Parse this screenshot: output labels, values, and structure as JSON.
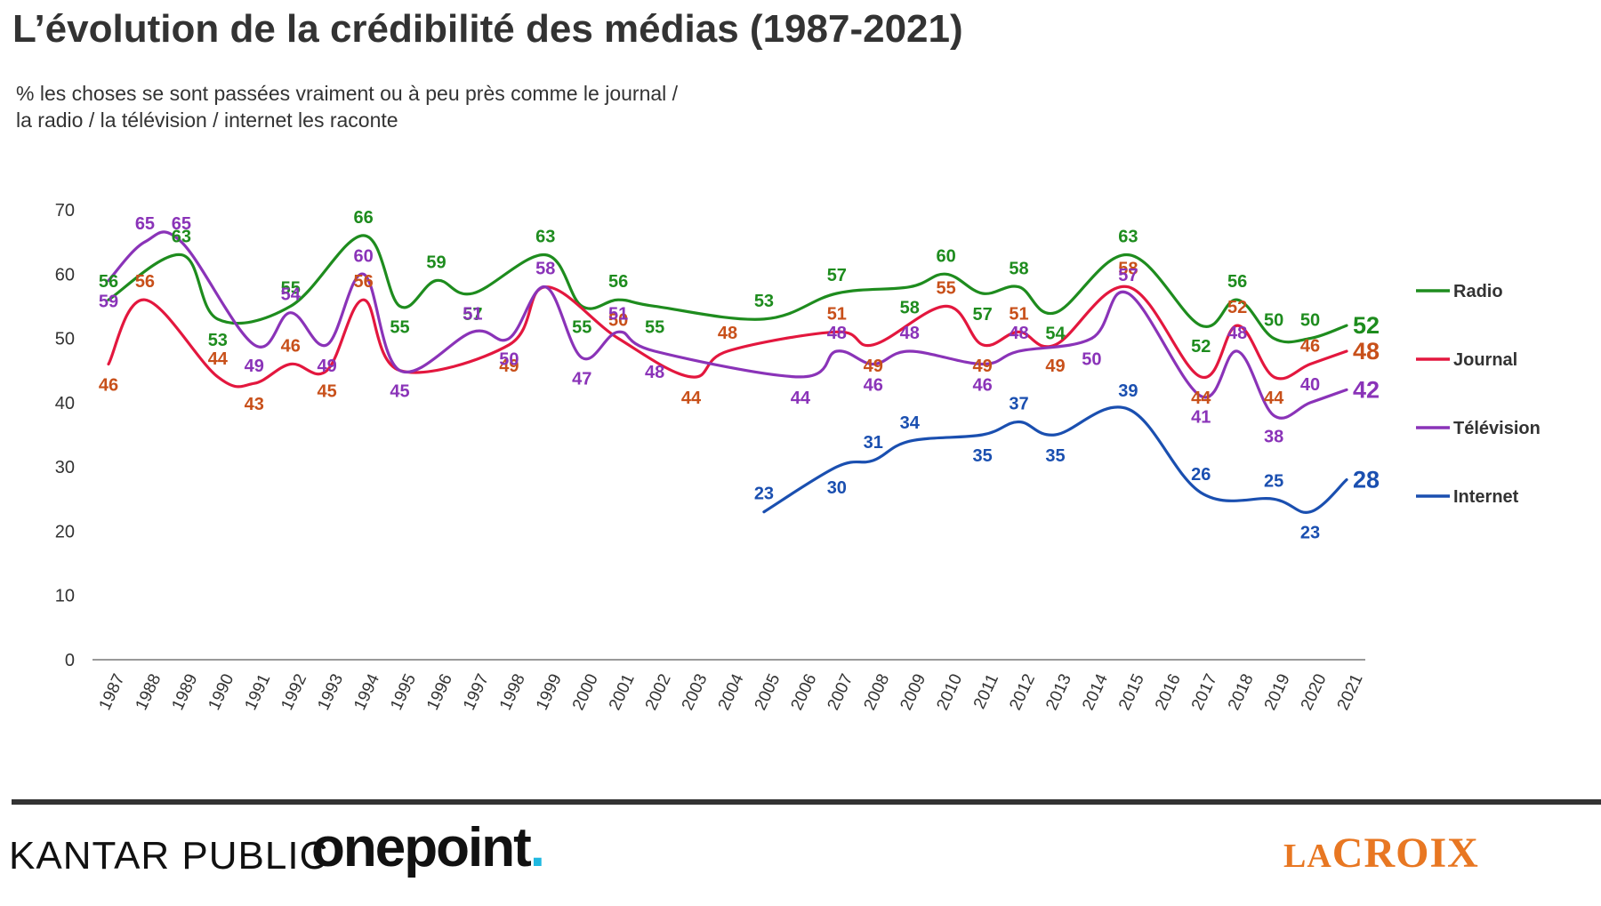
{
  "title": "L’évolution de la crédibilité des médias (1987-2021)",
  "subtitle": {
    "line1": "% les choses se sont passées vraiment ou à peu près comme le journal /",
    "line2": "la radio / la télévision / internet les raconte"
  },
  "footer": {
    "brand_left": "KANTAR PUBLIC",
    "brand_middle": "onepoint",
    "brand_middle_dot": ".",
    "brand_right_a": "LA",
    "brand_right_b": "CROIX"
  },
  "chart_data": {
    "type": "line",
    "ylim": [
      0,
      70
    ],
    "yticks": [
      0,
      10,
      20,
      30,
      40,
      50,
      60,
      70
    ],
    "grid": false,
    "legend_position": "right",
    "categories": [
      "1987",
      "1988",
      "1989",
      "1990",
      "1991",
      "1992",
      "1993",
      "1994",
      "1995",
      "1996",
      "1997",
      "1998",
      "1999",
      "2000",
      "2001",
      "2002",
      "2003",
      "2004",
      "2005",
      "2006",
      "2007",
      "2008",
      "2009",
      "2010",
      "2011",
      "2012",
      "2013",
      "2014",
      "2015",
      "2016",
      "2017",
      "2018",
      "2019",
      "2020",
      "2021"
    ],
    "series": [
      {
        "name": "Radio",
        "color": "#1e8c1e",
        "points": [
          [
            "1987",
            56
          ],
          [
            "1989",
            63
          ],
          [
            "1990",
            53
          ],
          [
            "1992",
            55
          ],
          [
            "1994",
            66
          ],
          [
            "1995",
            55
          ],
          [
            "1996",
            59
          ],
          [
            "1997",
            57
          ],
          [
            "1999",
            63
          ],
          [
            "2000",
            55
          ],
          [
            "2001",
            56
          ],
          [
            "2002",
            55
          ],
          [
            "2005",
            53
          ],
          [
            "2007",
            57
          ],
          [
            "2009",
            58
          ],
          [
            "2010",
            60
          ],
          [
            "2011",
            57
          ],
          [
            "2012",
            58
          ],
          [
            "2013",
            54
          ],
          [
            "2015",
            63
          ],
          [
            "2017",
            52
          ],
          [
            "2018",
            56
          ],
          [
            "2019",
            50
          ],
          [
            "2020",
            50
          ],
          [
            "2021",
            52
          ]
        ],
        "last_value": "52"
      },
      {
        "name": "Journal",
        "color": "#e3173e",
        "points": [
          [
            "1987",
            46
          ],
          [
            "1988",
            56
          ],
          [
            "1990",
            44
          ],
          [
            "1991",
            43
          ],
          [
            "1992",
            46
          ],
          [
            "1993",
            45
          ],
          [
            "1994",
            56
          ],
          [
            "1995",
            45
          ],
          [
            "1998",
            49
          ],
          [
            "1999",
            58
          ],
          [
            "2001",
            50
          ],
          [
            "2003",
            44
          ],
          [
            "2004",
            48
          ],
          [
            "2007",
            51
          ],
          [
            "2008",
            49
          ],
          [
            "2010",
            55
          ],
          [
            "2011",
            49
          ],
          [
            "2012",
            51
          ],
          [
            "2013",
            49
          ],
          [
            "2015",
            58
          ],
          [
            "2017",
            44
          ],
          [
            "2018",
            52
          ],
          [
            "2019",
            44
          ],
          [
            "2020",
            46
          ],
          [
            "2021",
            48
          ]
        ],
        "last_value": "48"
      },
      {
        "name": "Télévision",
        "color": "#8a33b8",
        "points": [
          [
            "1987",
            59
          ],
          [
            "1988",
            65
          ],
          [
            "1989",
            65
          ],
          [
            "1991",
            49
          ],
          [
            "1992",
            54
          ],
          [
            "1993",
            49
          ],
          [
            "1994",
            60
          ],
          [
            "1995",
            45
          ],
          [
            "1997",
            51
          ],
          [
            "1998",
            50
          ],
          [
            "1999",
            58
          ],
          [
            "2000",
            47
          ],
          [
            "2001",
            51
          ],
          [
            "2002",
            48
          ],
          [
            "2006",
            44
          ],
          [
            "2007",
            48
          ],
          [
            "2008",
            46
          ],
          [
            "2009",
            48
          ],
          [
            "2011",
            46
          ],
          [
            "2012",
            48
          ],
          [
            "2014",
            50
          ],
          [
            "2015",
            57
          ],
          [
            "2017",
            41
          ],
          [
            "2018",
            48
          ],
          [
            "2019",
            38
          ],
          [
            "2020",
            40
          ],
          [
            "2021",
            42
          ]
        ],
        "last_value": "42"
      },
      {
        "name": "Internet",
        "color": "#1a4fb0",
        "points": [
          [
            "2005",
            23
          ],
          [
            "2007",
            30
          ],
          [
            "2008",
            31
          ],
          [
            "2009",
            34
          ],
          [
            "2011",
            35
          ],
          [
            "2012",
            37
          ],
          [
            "2013",
            35
          ],
          [
            "2015",
            39
          ],
          [
            "2017",
            26
          ],
          [
            "2019",
            25
          ],
          [
            "2020",
            23
          ],
          [
            "2021",
            28
          ]
        ],
        "last_value": "28"
      }
    ],
    "point_labels": {
      "Radio": [
        [
          "1987",
          "56"
        ],
        [
          "1989",
          "63"
        ],
        [
          "1990",
          "53"
        ],
        [
          "1992",
          "55"
        ],
        [
          "1994",
          "66"
        ],
        [
          "1995",
          "55"
        ],
        [
          "1996",
          "59"
        ],
        [
          "1997",
          "57"
        ],
        [
          "1999",
          "63"
        ],
        [
          "2000",
          "55"
        ],
        [
          "2001",
          "56"
        ],
        [
          "2002",
          "55"
        ],
        [
          "2005",
          "53"
        ],
        [
          "2007",
          "57"
        ],
        [
          "2009",
          "58"
        ],
        [
          "2010",
          "60"
        ],
        [
          "2011",
          "57"
        ],
        [
          "2012",
          "58"
        ],
        [
          "2013",
          "54"
        ],
        [
          "2015",
          "63"
        ],
        [
          "2017",
          "52"
        ],
        [
          "2018",
          "56"
        ],
        [
          "2019",
          "50"
        ],
        [
          "2020",
          "50"
        ]
      ],
      "Journal": [
        [
          "1987",
          "46"
        ],
        [
          "1988",
          "56"
        ],
        [
          "1990",
          "44"
        ],
        [
          "1991",
          "43"
        ],
        [
          "1992",
          "46"
        ],
        [
          "1993",
          "45"
        ],
        [
          "1994",
          "56"
        ],
        [
          "1998",
          "49"
        ],
        [
          "2001",
          "50"
        ],
        [
          "2003",
          "44"
        ],
        [
          "2004",
          "48"
        ],
        [
          "2007",
          "51"
        ],
        [
          "2008",
          "49"
        ],
        [
          "2010",
          "55"
        ],
        [
          "2011",
          "49"
        ],
        [
          "2012",
          "51"
        ],
        [
          "2013",
          "49"
        ],
        [
          "2015",
          "58"
        ],
        [
          "2017",
          "44"
        ],
        [
          "2018",
          "52"
        ],
        [
          "2019",
          "44"
        ],
        [
          "2020",
          "46"
        ]
      ],
      "Télévision": [
        [
          "1987",
          "59"
        ],
        [
          "1988",
          "65"
        ],
        [
          "1989",
          "65"
        ],
        [
          "1991",
          "49"
        ],
        [
          "1992",
          "54"
        ],
        [
          "1993",
          "49"
        ],
        [
          "1994",
          "60"
        ],
        [
          "1995",
          "45"
        ],
        [
          "1997",
          "51"
        ],
        [
          "1998",
          "50"
        ],
        [
          "1999",
          "58"
        ],
        [
          "2000",
          "47"
        ],
        [
          "2001",
          "51"
        ],
        [
          "2002",
          "48"
        ],
        [
          "2006",
          "44"
        ],
        [
          "2007",
          "48"
        ],
        [
          "2008",
          "46"
        ],
        [
          "2009",
          "48"
        ],
        [
          "2011",
          "46"
        ],
        [
          "2012",
          "48"
        ],
        [
          "2014",
          "50"
        ],
        [
          "2015",
          "57"
        ],
        [
          "2017",
          "41"
        ],
        [
          "2018",
          "48"
        ],
        [
          "2019",
          "38"
        ],
        [
          "2020",
          "40"
        ]
      ],
      "Internet": [
        [
          "2005",
          "23"
        ],
        [
          "2007",
          "30"
        ],
        [
          "2008",
          "31"
        ],
        [
          "2009",
          "34"
        ],
        [
          "2011",
          "35"
        ],
        [
          "2012",
          "37"
        ],
        [
          "2013",
          "35"
        ],
        [
          "2015",
          "39"
        ],
        [
          "2017",
          "26"
        ],
        [
          "2019",
          "25"
        ],
        [
          "2020",
          "23"
        ]
      ]
    },
    "label_colors": {
      "Radio": "#1e8c1e",
      "Journal": "#c8501a",
      "Télévision": "#8a33b8",
      "Internet": "#1a4fb0"
    }
  }
}
